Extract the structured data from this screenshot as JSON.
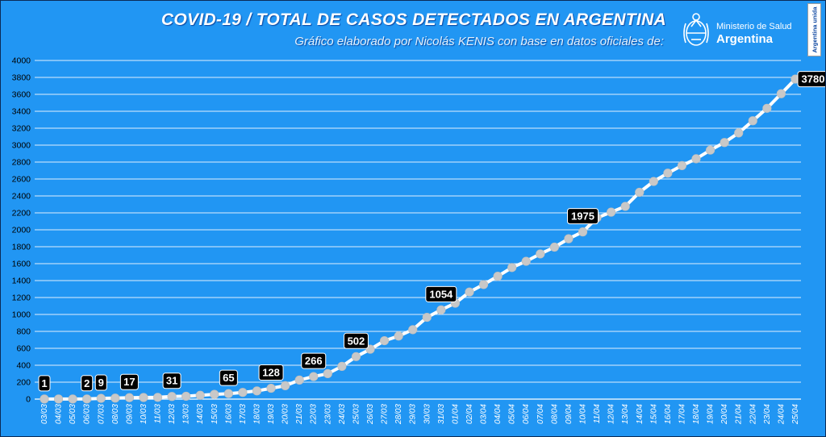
{
  "header": {
    "title": "COVID-19  /  TOTAL DE CASOS DETECTADOS EN ARGENTINA",
    "subtitle": "Gráfico elaborado por Nicolás KENIS con base en datos oficiales de:"
  },
  "logo": {
    "icon": "argentina-coat-of-arms-icon",
    "line1": "Ministerio de Salud",
    "line2": "Argentina"
  },
  "badge": {
    "text": "Argentina unida"
  },
  "colors": {
    "background": "#2196f3",
    "line": "#ffffff",
    "marker": "#c8c8c8",
    "label_bg": "#000000",
    "label_text": "#ffffff",
    "grid": "#ffffff"
  },
  "chart_data": {
    "type": "line",
    "title": "COVID-19  /  TOTAL DE CASOS DETECTADOS EN ARGENTINA",
    "xlabel": "",
    "ylabel": "",
    "ylim": [
      0,
      4000
    ],
    "yticks": [
      0,
      200,
      400,
      600,
      800,
      1000,
      1200,
      1400,
      1600,
      1800,
      2000,
      2200,
      2400,
      2600,
      2800,
      3000,
      3200,
      3400,
      3600,
      3800,
      4000
    ],
    "grid": true,
    "legend": "none",
    "categories": [
      "03/03",
      "04/03",
      "05/03",
      "06/03",
      "07/03",
      "08/03",
      "09/03",
      "10/03",
      "11/03",
      "12/03",
      "13/03",
      "14/03",
      "15/03",
      "16/03",
      "17/03",
      "18/03",
      "19/03",
      "20/03",
      "21/03",
      "22/03",
      "23/03",
      "24/03",
      "25/03",
      "26/03",
      "27/03",
      "28/03",
      "29/03",
      "30/03",
      "31/03",
      "01/04",
      "02/04",
      "03/04",
      "04/04",
      "05/04",
      "06/04",
      "07/04",
      "08/04",
      "09/04",
      "10/04",
      "11/04",
      "12/04",
      "13/04",
      "14/04",
      "15/04",
      "16/04",
      "17/04",
      "18/04",
      "19/04",
      "20/04",
      "21/04",
      "22/04",
      "23/04",
      "24/04",
      "25/04"
    ],
    "values": [
      1,
      1,
      1,
      2,
      9,
      12,
      17,
      19,
      21,
      31,
      34,
      45,
      56,
      65,
      79,
      97,
      128,
      158,
      225,
      266,
      301,
      387,
      502,
      589,
      690,
      745,
      820,
      966,
      1054,
      1133,
      1265,
      1353,
      1451,
      1554,
      1628,
      1715,
      1795,
      1894,
      1975,
      2142,
      2208,
      2277,
      2443,
      2571,
      2669,
      2758,
      2839,
      2941,
      3031,
      3144,
      3288,
      3435,
      3607,
      3780
    ],
    "data_labels": [
      {
        "index": 0,
        "text": "1"
      },
      {
        "index": 3,
        "text": "2"
      },
      {
        "index": 4,
        "text": "9"
      },
      {
        "index": 6,
        "text": "17"
      },
      {
        "index": 9,
        "text": "31"
      },
      {
        "index": 13,
        "text": "65"
      },
      {
        "index": 16,
        "text": "128"
      },
      {
        "index": 19,
        "text": "266"
      },
      {
        "index": 22,
        "text": "502"
      },
      {
        "index": 28,
        "text": "1054"
      },
      {
        "index": 38,
        "text": "1975"
      },
      {
        "index": 53,
        "text": "3780"
      }
    ]
  }
}
